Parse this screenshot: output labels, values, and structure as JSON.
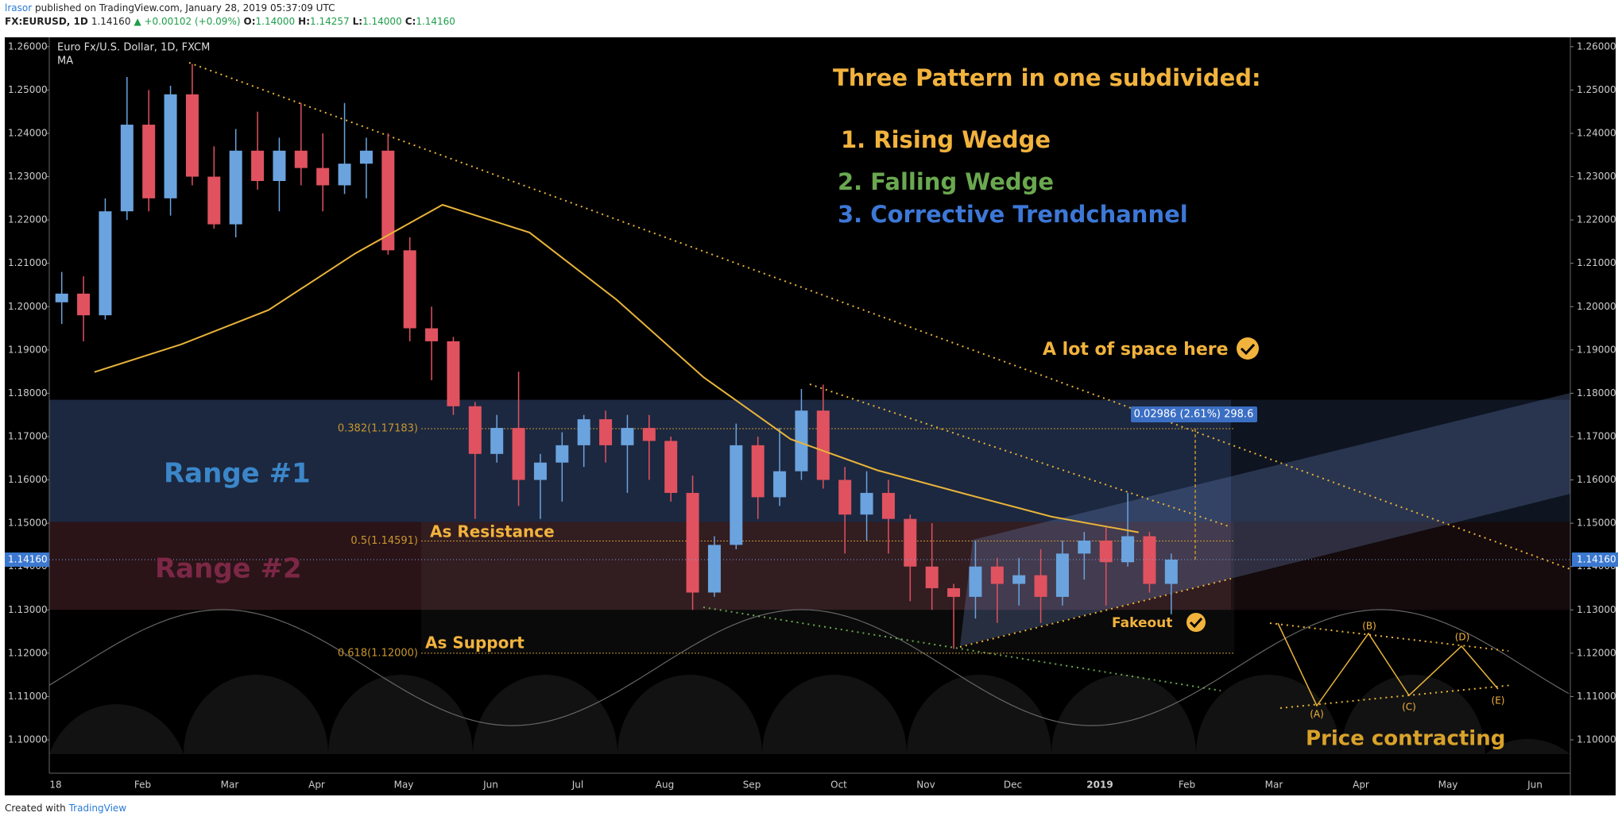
{
  "header": {
    "author": "lrasor",
    "published": "published on TradingView.com, January 28, 2019 05:37:09 UTC",
    "symbol": "FX:EURUSD, 1D",
    "last": "1.14160",
    "change": "▲ +0.00102 (+0.09%)",
    "ohlc": [
      {
        "label": "O:",
        "value": "1.14000"
      },
      {
        "label": "H:",
        "value": "1.14257"
      },
      {
        "label": "L:",
        "value": "1.14000"
      },
      {
        "label": "C:",
        "value": "1.14160"
      }
    ]
  },
  "footer": {
    "text": "Created with",
    "brand": "TradingView"
  },
  "chart_data": {
    "type": "candlestick",
    "title": "Euro Fx/U.S. Dollar, 1D, FXCM",
    "indicator": "MA",
    "up_color": "#6ba3de",
    "down_color": "#e0525f",
    "ma_color": "#e8b33a",
    "ylim": [
      1.0923,
      1.2618
    ],
    "yticks": [
      {
        "value": 1.26,
        "label": "1.26000"
      },
      {
        "value": 1.25,
        "label": "1.25000"
      },
      {
        "value": 1.24,
        "label": "1.24000"
      },
      {
        "value": 1.23,
        "label": "1.23000"
      },
      {
        "value": 1.22,
        "label": "1.22000"
      },
      {
        "value": 1.21,
        "label": "1.21000"
      },
      {
        "value": 1.2,
        "label": "1.20000"
      },
      {
        "value": 1.19,
        "label": "1.19000"
      },
      {
        "value": 1.18,
        "label": "1.18000"
      },
      {
        "value": 1.17,
        "label": "1.17000"
      },
      {
        "value": 1.16,
        "label": "1.16000"
      },
      {
        "value": 1.15,
        "label": "1.15000"
      },
      {
        "value": 1.14,
        "label": "1.14000"
      },
      {
        "value": 1.13,
        "label": "1.13000"
      },
      {
        "value": 1.12,
        "label": "1.12000"
      },
      {
        "value": 1.11,
        "label": "1.11000"
      },
      {
        "value": 1.1,
        "label": "1.10000"
      }
    ],
    "grid": false,
    "months": [
      {
        "label": "18",
        "ma": 1.1849,
        "candles": [
          [
            1.201,
            1.208,
            1.196,
            1.203
          ],
          [
            1.203,
            1.207,
            1.192,
            1.198
          ],
          [
            1.198,
            1.225,
            1.197,
            1.222
          ],
          [
            1.222,
            1.253,
            1.22,
            1.242
          ]
        ]
      },
      {
        "label": "Feb",
        "ma": 1.1913,
        "candles": [
          [
            1.242,
            1.25,
            1.222,
            1.225
          ],
          [
            1.225,
            1.251,
            1.221,
            1.249
          ],
          [
            1.249,
            1.256,
            1.228,
            1.23
          ],
          [
            1.23,
            1.237,
            1.218,
            1.219
          ]
        ]
      },
      {
        "label": "Mar",
        "ma": 1.1992,
        "candles": [
          [
            1.219,
            1.241,
            1.216,
            1.236
          ],
          [
            1.236,
            1.245,
            1.227,
            1.229
          ],
          [
            1.229,
            1.239,
            1.222,
            1.236
          ],
          [
            1.236,
            1.247,
            1.228,
            1.232
          ]
        ]
      },
      {
        "label": "Apr",
        "ma": 1.2123,
        "candles": [
          [
            1.232,
            1.24,
            1.222,
            1.228
          ],
          [
            1.228,
            1.247,
            1.226,
            1.233
          ],
          [
            1.233,
            1.239,
            1.225,
            1.236
          ],
          [
            1.236,
            1.24,
            1.212,
            1.213
          ]
        ]
      },
      {
        "label": "May",
        "ma": 1.2235,
        "candles": [
          [
            1.213,
            1.216,
            1.192,
            1.195
          ],
          [
            1.195,
            1.2,
            1.183,
            1.192
          ],
          [
            1.192,
            1.193,
            1.175,
            1.177
          ],
          [
            1.177,
            1.178,
            1.151,
            1.166
          ]
        ]
      },
      {
        "label": "Jun",
        "ma": 1.2171,
        "candles": [
          [
            1.166,
            1.175,
            1.164,
            1.172
          ],
          [
            1.172,
            1.185,
            1.154,
            1.16
          ],
          [
            1.16,
            1.166,
            1.151,
            1.164
          ],
          [
            1.164,
            1.171,
            1.155,
            1.168
          ]
        ]
      },
      {
        "label": "Jul",
        "ma": 1.2016,
        "candles": [
          [
            1.168,
            1.175,
            1.163,
            1.174
          ],
          [
            1.174,
            1.176,
            1.164,
            1.168
          ],
          [
            1.168,
            1.175,
            1.157,
            1.172
          ],
          [
            1.172,
            1.175,
            1.16,
            1.169
          ]
        ]
      },
      {
        "label": "Aug",
        "ma": 1.1837,
        "candles": [
          [
            1.169,
            1.17,
            1.155,
            1.157
          ],
          [
            1.157,
            1.161,
            1.13,
            1.134
          ],
          [
            1.134,
            1.147,
            1.133,
            1.145
          ],
          [
            1.145,
            1.173,
            1.144,
            1.168
          ]
        ]
      },
      {
        "label": "Sep",
        "ma": 1.1694,
        "candles": [
          [
            1.168,
            1.17,
            1.151,
            1.156
          ],
          [
            1.156,
            1.172,
            1.154,
            1.162
          ],
          [
            1.162,
            1.181,
            1.16,
            1.176
          ],
          [
            1.176,
            1.182,
            1.158,
            1.16
          ]
        ]
      },
      {
        "label": "Oct",
        "ma": 1.1622,
        "candles": [
          [
            1.16,
            1.163,
            1.143,
            1.152
          ],
          [
            1.152,
            1.162,
            1.146,
            1.157
          ],
          [
            1.157,
            1.16,
            1.143,
            1.151
          ],
          [
            1.151,
            1.152,
            1.132,
            1.14
          ]
        ]
      },
      {
        "label": "Nov",
        "ma": 1.1568,
        "candles": [
          [
            1.14,
            1.15,
            1.13,
            1.135
          ],
          [
            1.135,
            1.136,
            1.121,
            1.133
          ],
          [
            1.133,
            1.146,
            1.128,
            1.14
          ],
          [
            1.14,
            1.142,
            1.127,
            1.136
          ]
        ]
      },
      {
        "label": "Dec",
        "ma": 1.1515,
        "candles": [
          [
            1.136,
            1.142,
            1.131,
            1.138
          ],
          [
            1.138,
            1.144,
            1.127,
            1.133
          ],
          [
            1.133,
            1.146,
            1.131,
            1.143
          ],
          [
            1.143,
            1.148,
            1.137,
            1.146
          ]
        ]
      },
      {
        "label": "2019",
        "ma": 1.1479,
        "candles": [
          [
            1.146,
            1.149,
            1.131,
            1.141
          ],
          [
            1.141,
            1.157,
            1.14,
            1.147
          ],
          [
            1.147,
            1.148,
            1.134,
            1.136
          ],
          [
            1.136,
            1.143,
            1.129,
            1.1416
          ]
        ]
      },
      {
        "label": "Feb",
        "ma": null,
        "candles": []
      },
      {
        "label": "Mar",
        "ma": null,
        "candles": []
      },
      {
        "label": "Apr",
        "ma": null,
        "candles": []
      },
      {
        "label": "May",
        "ma": null,
        "candles": []
      },
      {
        "label": "Jun",
        "ma": null,
        "candles": []
      }
    ],
    "price": {
      "value": 1.1416,
      "label": "1.14160",
      "color": "#3b78d0"
    },
    "zones": [
      {
        "label": "Range #1",
        "from": 1.1503,
        "to": 1.1785,
        "color": "#1c2840"
      },
      {
        "label": "Range #2",
        "from": 1.13,
        "to": 1.1503,
        "color": "#2a1418"
      }
    ],
    "fib": [
      {
        "price": 1.17183,
        "label": "0.382(1.17183)"
      },
      {
        "price": 1.14591,
        "label": "0.5(1.14591)"
      },
      {
        "price": 1.12,
        "label": "0.618(1.12000)"
      }
    ],
    "measure": {
      "label": "0.02986 (2.61%) 298.6",
      "color": "#3b6fc4"
    },
    "annotations": [
      {
        "text": "Three Pattern in one subdivided:",
        "color": "#f2b33d"
      },
      {
        "text": "1. Rising Wedge",
        "color": "#f2b33d"
      },
      {
        "text": "2. Falling Wedge",
        "color": "#6aa84f"
      },
      {
        "text": "3. Corrective Trendchannel",
        "color": "#3d78d8"
      },
      {
        "text": "A lot of space here",
        "color": "#f2b33d"
      },
      {
        "text": "Range #1",
        "color": "#3b86c9"
      },
      {
        "text": "Range #2",
        "color": "#7c2746"
      },
      {
        "text": "As Resistance",
        "color": "#f2b33d"
      },
      {
        "text": "As Support",
        "color": "#f2b33d"
      },
      {
        "text": "Fakeout",
        "color": "#f2b33d"
      },
      {
        "text": "Price contracting",
        "color": "#d9a22a"
      }
    ],
    "waves": [
      "(A)",
      "(B)",
      "(C)",
      "(D)",
      "(E)"
    ]
  }
}
